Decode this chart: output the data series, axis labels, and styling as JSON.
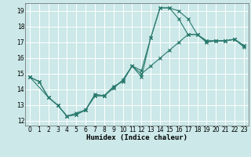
{
  "xlabel": "Humidex (Indice chaleur)",
  "bg_color": "#cce8e8",
  "grid_color": "#ffffff",
  "line_color": "#2a7a6e",
  "xlim": [
    -0.5,
    23.5
  ],
  "ylim": [
    11.7,
    19.5
  ],
  "xticks": [
    0,
    1,
    2,
    3,
    4,
    5,
    6,
    7,
    8,
    9,
    10,
    11,
    12,
    13,
    14,
    15,
    16,
    17,
    18,
    19,
    20,
    21,
    22,
    23
  ],
  "yticks": [
    12,
    13,
    14,
    15,
    16,
    17,
    18,
    19
  ],
  "line1_x": [
    0,
    1,
    2,
    3,
    4,
    5,
    6,
    7,
    8,
    9,
    10,
    11,
    12,
    13,
    14,
    15,
    16,
    17,
    18,
    19,
    20,
    21,
    22,
    23
  ],
  "line1_y": [
    14.8,
    14.5,
    13.5,
    13.0,
    12.3,
    12.4,
    12.7,
    13.6,
    13.6,
    14.1,
    14.6,
    15.5,
    14.8,
    17.3,
    19.2,
    19.2,
    19.0,
    18.5,
    17.5,
    17.1,
    17.1,
    17.1,
    17.2,
    16.7
  ],
  "line2_x": [
    0,
    2,
    3,
    4,
    5,
    6,
    7,
    8,
    9,
    10,
    11,
    12,
    13,
    14,
    15,
    16,
    17,
    18,
    19,
    20,
    21,
    22,
    23
  ],
  "line2_y": [
    14.8,
    13.5,
    13.0,
    12.3,
    12.5,
    12.7,
    13.7,
    13.6,
    14.1,
    14.6,
    15.5,
    15.2,
    17.3,
    19.2,
    19.2,
    18.5,
    17.5,
    17.5,
    17.1,
    17.1,
    17.1,
    17.2,
    16.8
  ],
  "line3_x": [
    0,
    1,
    2,
    3,
    4,
    5,
    6,
    7,
    8,
    9,
    10,
    11,
    12,
    13,
    14,
    15,
    16,
    17,
    18,
    19,
    20,
    21,
    22,
    23
  ],
  "line3_y": [
    14.8,
    14.5,
    13.5,
    13.0,
    12.3,
    12.4,
    12.7,
    13.6,
    13.6,
    14.2,
    14.5,
    15.5,
    15.0,
    15.5,
    16.0,
    16.5,
    17.0,
    17.5,
    17.5,
    17.0,
    17.1,
    17.1,
    17.2,
    16.8
  ],
  "xlabel_fontsize": 6.5,
  "tick_fontsize": 5.5
}
